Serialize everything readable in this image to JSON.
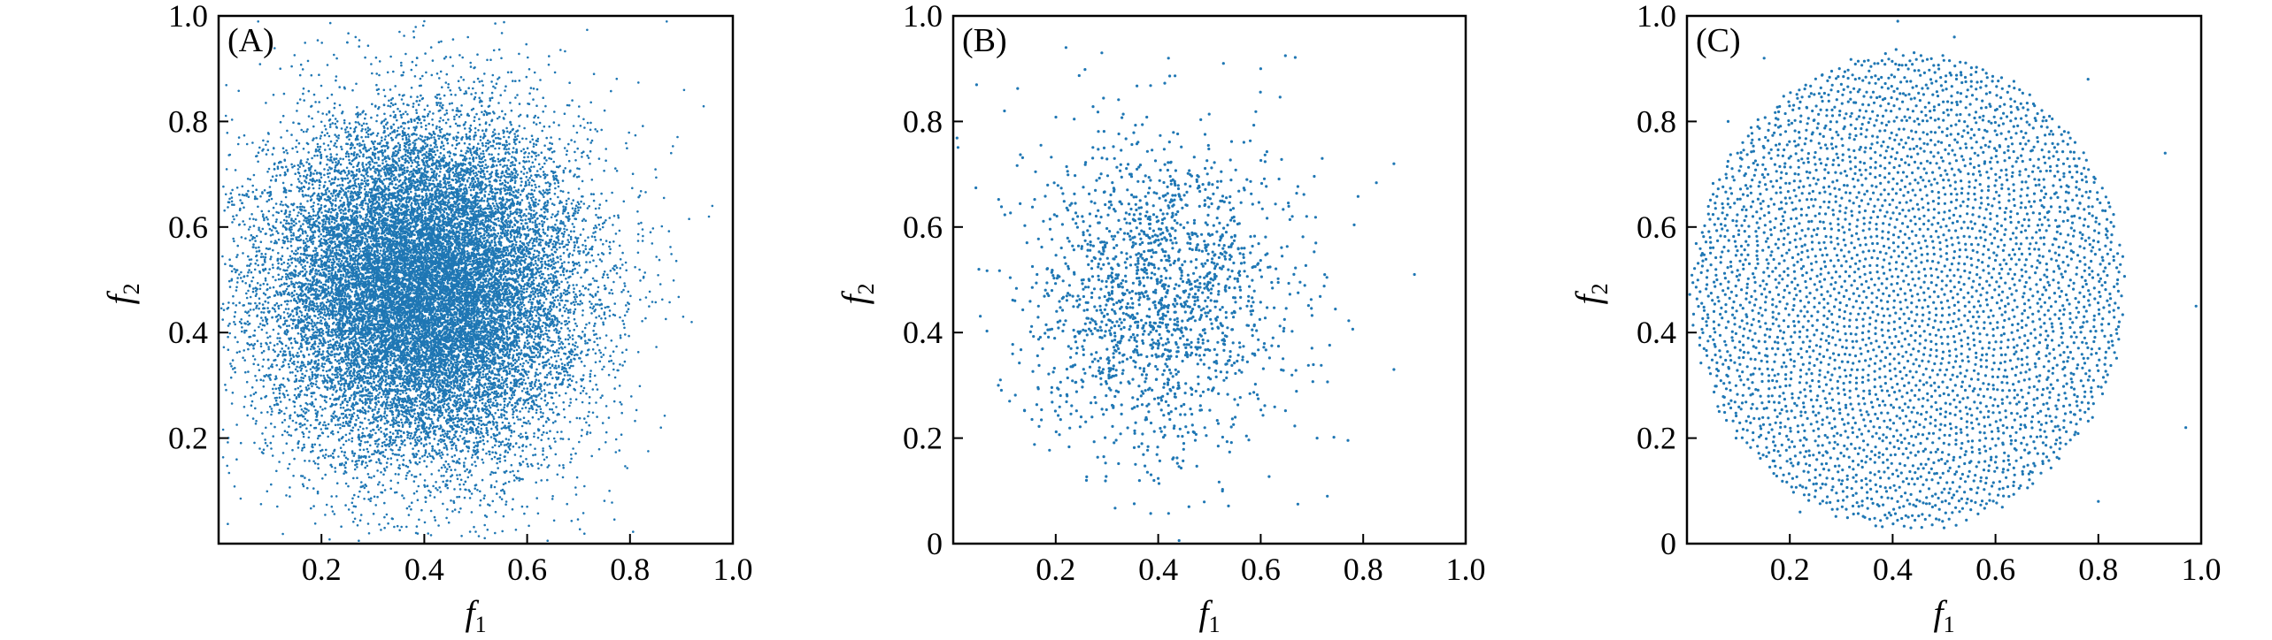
{
  "chart_data": [
    {
      "type": "scatter",
      "panel_label": "(A)",
      "xlabel": "f",
      "xlabel_sub": "1",
      "ylabel": "f",
      "ylabel_sub": "2",
      "xlim": [
        0,
        1.0
      ],
      "ylim": [
        0,
        1.0
      ],
      "xticks": [
        0.2,
        0.4,
        0.6,
        0.8,
        1.0
      ],
      "xtick_labels": [
        "0.2",
        "0.4",
        "0.6",
        "0.8",
        "1.0"
      ],
      "yticks": [
        0.2,
        0.4,
        0.6,
        0.8,
        1.0
      ],
      "ytick_labels": [
        "0.2",
        "0.4",
        "0.6",
        "0.8",
        "1.0"
      ],
      "grid": false,
      "color": "#1f77b4",
      "point_distribution": {
        "kind": "gaussian",
        "center": [
          0.4,
          0.48
        ],
        "spread": [
          0.15,
          0.16
        ],
        "count": 20000
      },
      "points": [
        [
          0.12,
          0.9
        ],
        [
          0.25,
          0.95
        ],
        [
          0.4,
          0.99
        ],
        [
          0.55,
          0.92
        ],
        [
          0.73,
          0.89
        ],
        [
          0.88,
          0.74
        ],
        [
          0.96,
          0.64
        ],
        [
          0.92,
          0.42
        ],
        [
          0.86,
          0.22
        ],
        [
          0.76,
          0.1
        ],
        [
          0.6,
          0.07
        ],
        [
          0.42,
          0.05
        ],
        [
          0.22,
          0.07
        ],
        [
          0.08,
          0.18
        ],
        [
          0.03,
          0.42
        ],
        [
          0.05,
          0.66
        ]
      ]
    },
    {
      "type": "scatter",
      "panel_label": "(B)",
      "xlabel": "f",
      "xlabel_sub": "1",
      "ylabel": "f",
      "ylabel_sub": "2",
      "xlim": [
        0,
        1.0
      ],
      "ylim": [
        0,
        1.0
      ],
      "xticks": [
        0.2,
        0.4,
        0.6,
        0.8,
        1.0
      ],
      "xtick_labels": [
        "0.2",
        "0.4",
        "0.6",
        "0.8",
        "1.0"
      ],
      "yticks": [
        0,
        0.2,
        0.4,
        0.6,
        0.8,
        1.0
      ],
      "ytick_labels": [
        "0",
        "0.2",
        "0.4",
        "0.6",
        "0.8",
        "1.0"
      ],
      "grid": false,
      "color": "#1f77b4",
      "point_distribution": {
        "kind": "gaussian",
        "center": [
          0.4,
          0.47
        ],
        "spread": [
          0.13,
          0.15
        ],
        "count": 1800
      },
      "points": [
        [
          0.22,
          0.94
        ],
        [
          0.29,
          0.93
        ],
        [
          0.42,
          0.92
        ],
        [
          0.6,
          0.9
        ],
        [
          0.72,
          0.73
        ],
        [
          0.86,
          0.72
        ],
        [
          0.9,
          0.51
        ],
        [
          0.86,
          0.33
        ],
        [
          0.71,
          0.2
        ],
        [
          0.73,
          0.09
        ],
        [
          0.46,
          0.07
        ],
        [
          0.26,
          0.12
        ],
        [
          0.11,
          0.27
        ],
        [
          0.05,
          0.52
        ],
        [
          0.1,
          0.82
        ]
      ]
    },
    {
      "type": "scatter",
      "panel_label": "(C)",
      "xlabel": "f",
      "xlabel_sub": "1",
      "ylabel": "f",
      "ylabel_sub": "2",
      "xlim": [
        0,
        1.0
      ],
      "ylim": [
        0,
        1.0
      ],
      "xticks": [
        0.2,
        0.4,
        0.6,
        0.8,
        1.0
      ],
      "xtick_labels": [
        "0.2",
        "0.4",
        "0.6",
        "0.8",
        "1.0"
      ],
      "yticks": [
        0,
        0.2,
        0.4,
        0.6,
        0.8,
        1.0
      ],
      "ytick_labels": [
        "0",
        "0.2",
        "0.4",
        "0.6",
        "0.8",
        "1.0"
      ],
      "grid": false,
      "color": "#1f77b4",
      "point_distribution": {
        "kind": "quasi-random",
        "center": [
          0.43,
          0.48
        ],
        "radius": [
          0.42,
          0.45
        ],
        "count": 3800
      },
      "points": [
        [
          0.15,
          0.92
        ],
        [
          0.41,
          0.99
        ],
        [
          0.52,
          0.96
        ],
        [
          0.78,
          0.88
        ],
        [
          0.93,
          0.74
        ],
        [
          0.99,
          0.45
        ],
        [
          0.97,
          0.22
        ],
        [
          0.8,
          0.08
        ],
        [
          0.5,
          0.03
        ],
        [
          0.22,
          0.06
        ],
        [
          0.06,
          0.26
        ],
        [
          0.03,
          0.55
        ],
        [
          0.08,
          0.8
        ]
      ]
    }
  ]
}
